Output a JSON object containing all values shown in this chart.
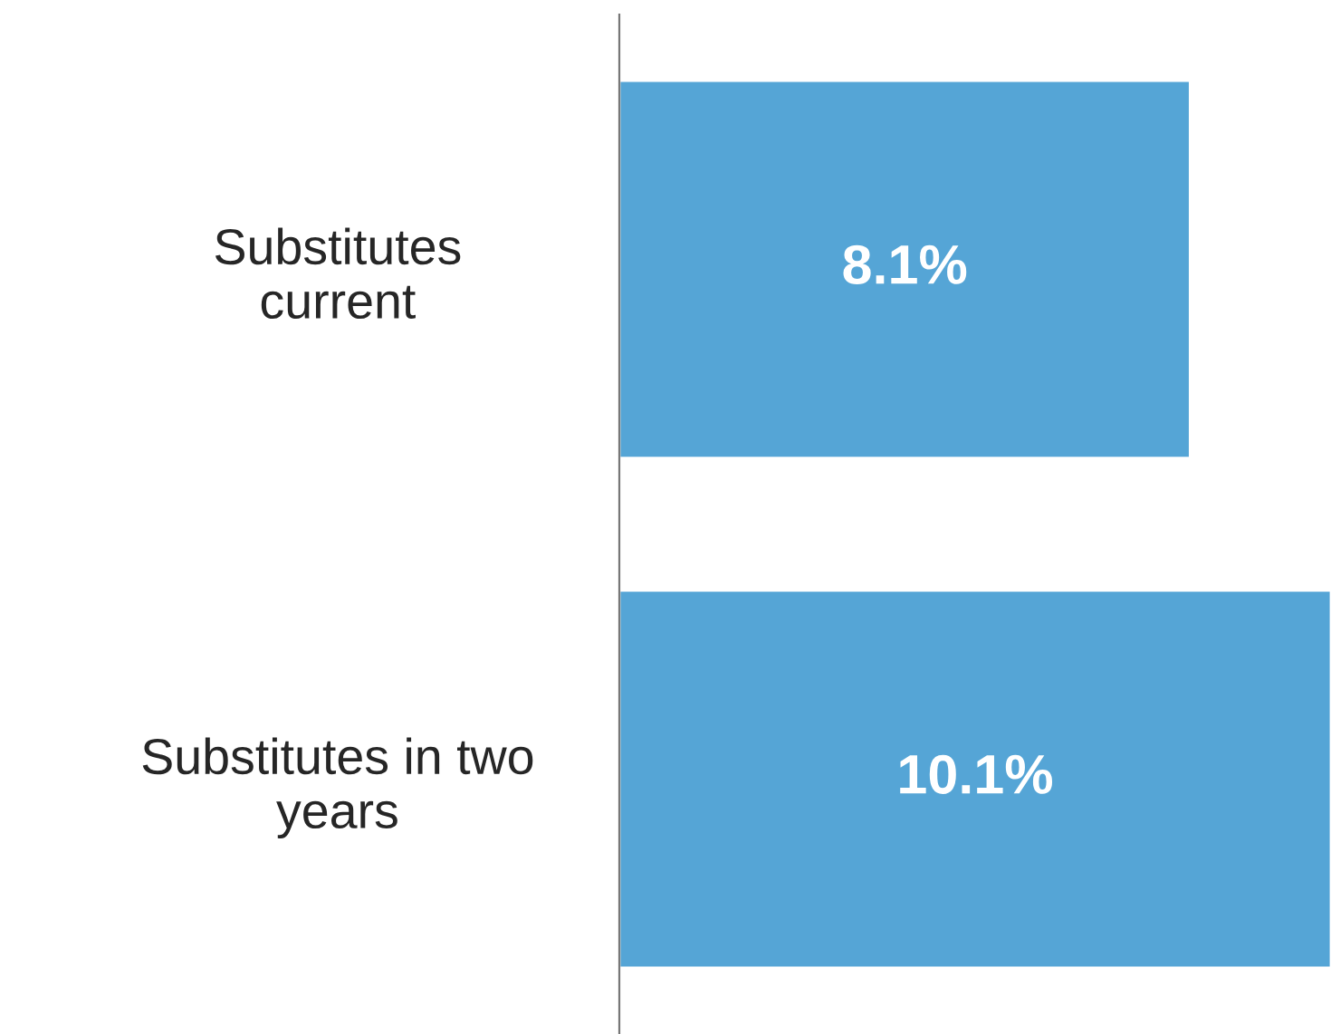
{
  "chart_data": {
    "type": "bar",
    "orientation": "horizontal",
    "categories": [
      "Substitutes\ncurrent",
      "Substitutes in two\nyears"
    ],
    "values": [
      8.1,
      10.1
    ],
    "color": "#55a5d6",
    "value_labels": [
      "8.1%",
      "10.1%"
    ],
    "grid": false,
    "legend": false,
    "tick_labels": "y"
  }
}
